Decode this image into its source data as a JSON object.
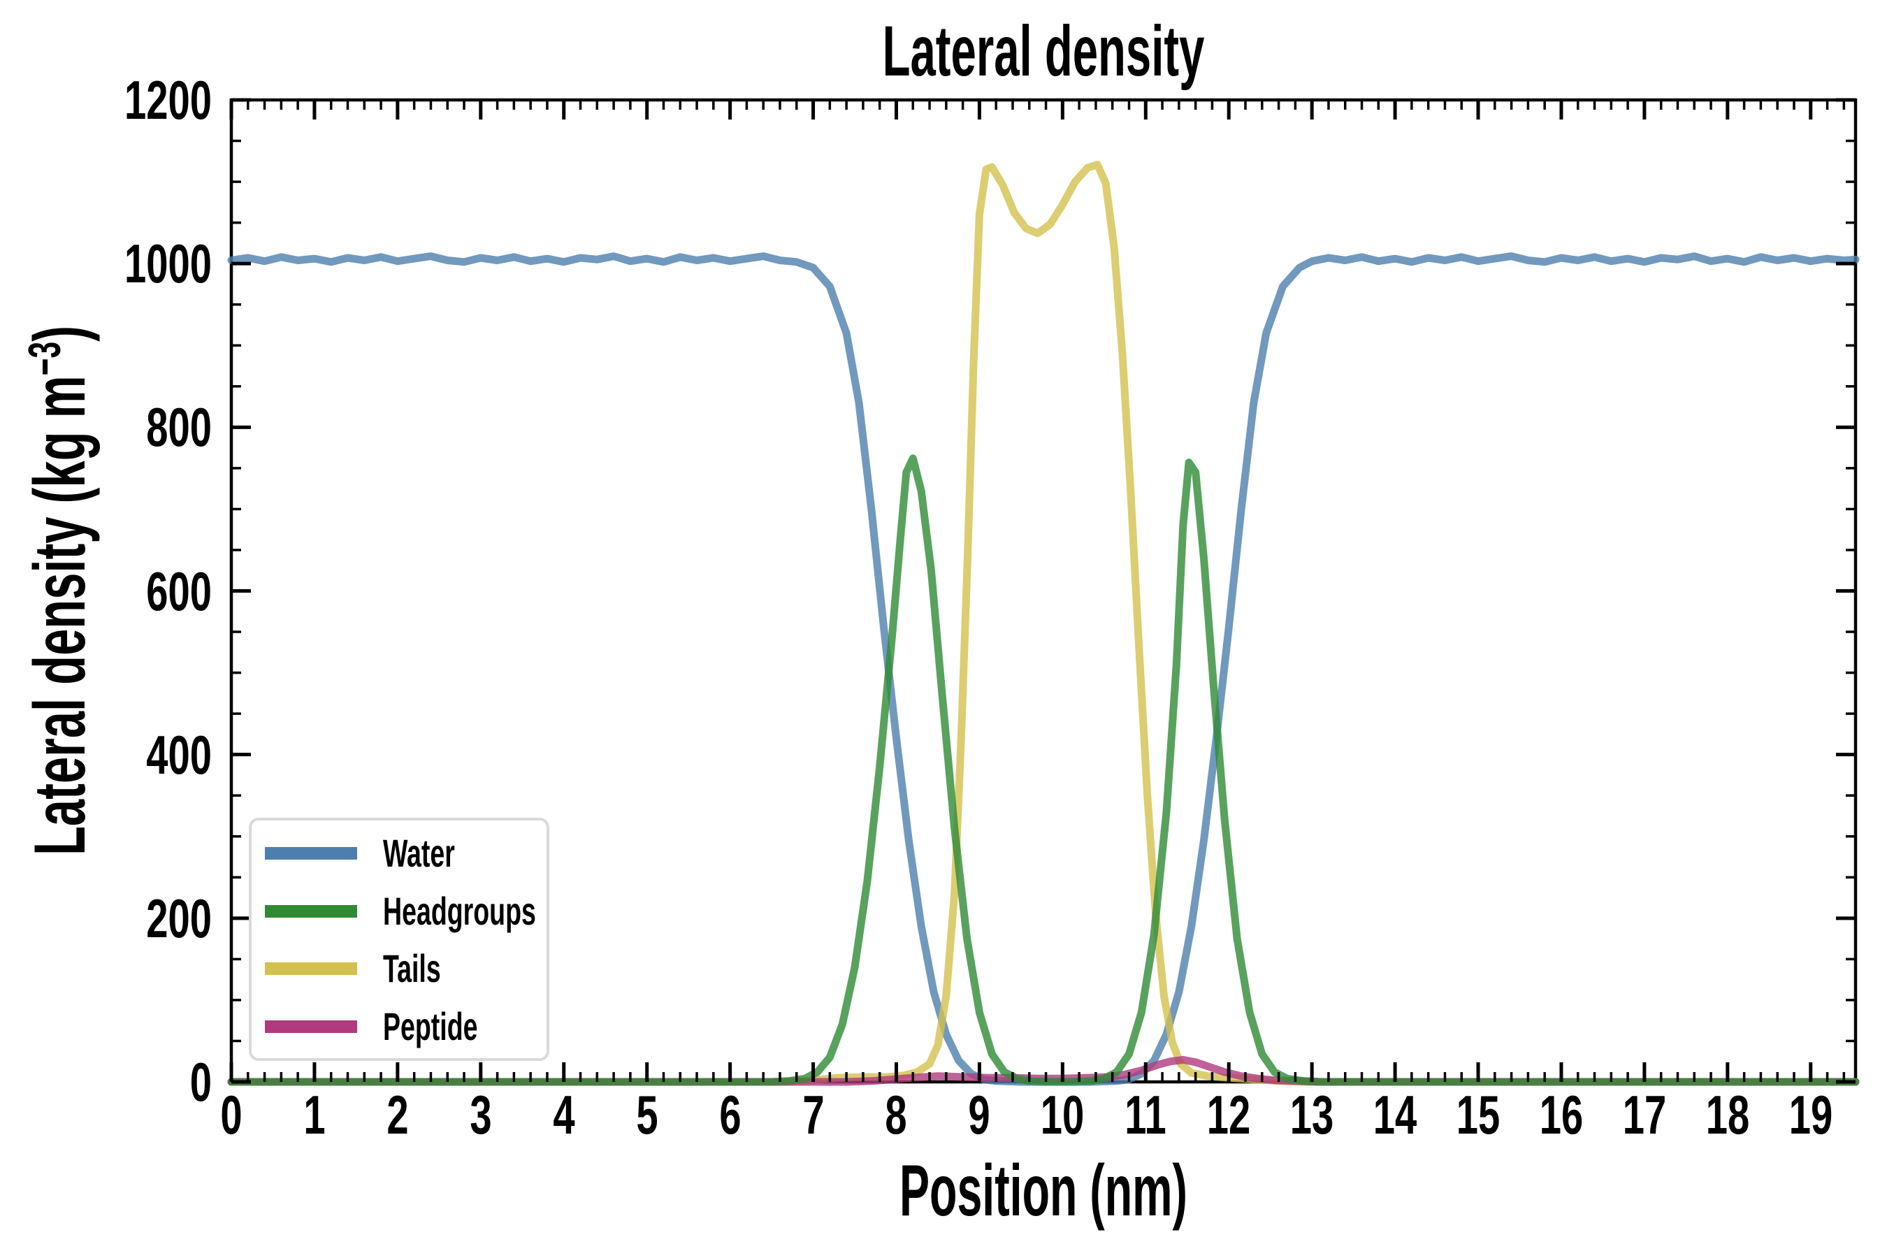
{
  "chart_data": {
    "type": "line",
    "title": "Lateral density",
    "xlabel": "Position (nm)",
    "ylabel_parts": [
      "Lateral density (kg m",
      "−3",
      ")"
    ],
    "xlim": [
      0,
      19.54
    ],
    "ylim": [
      0,
      1200
    ],
    "x_major_step": 1,
    "x_minor_step": 0.2,
    "y_major_step": 200,
    "y_minor_step": 50,
    "x_tick_labels": [
      "0",
      "1",
      "2",
      "3",
      "4",
      "5",
      "6",
      "7",
      "8",
      "9",
      "10",
      "11",
      "12",
      "13",
      "14",
      "15",
      "16",
      "17",
      "18",
      "19"
    ],
    "y_tick_labels": [
      "0",
      "200",
      "400",
      "600",
      "800",
      "1000",
      "1200"
    ],
    "grid": false,
    "legend_position": "lower left",
    "line_width": 11,
    "line_opacity": 0.8,
    "axis_color": "#000000",
    "legend_border_color": "#d9d9d9",
    "background": "#ffffff",
    "draw_order": [
      "Water",
      "Tails",
      "Peptide",
      "Headgroups"
    ],
    "series": [
      {
        "name": "Water",
        "color": "#4d7fae",
        "points": [
          [
            0,
            1004
          ],
          [
            0.2,
            1007
          ],
          [
            0.4,
            1003
          ],
          [
            0.6,
            1008
          ],
          [
            0.8,
            1004
          ],
          [
            1,
            1006
          ],
          [
            1.2,
            1002
          ],
          [
            1.4,
            1007
          ],
          [
            1.6,
            1004
          ],
          [
            1.8,
            1008
          ],
          [
            2,
            1003
          ],
          [
            2.2,
            1006
          ],
          [
            2.4,
            1009
          ],
          [
            2.6,
            1004
          ],
          [
            2.8,
            1002
          ],
          [
            3,
            1007
          ],
          [
            3.2,
            1004
          ],
          [
            3.4,
            1008
          ],
          [
            3.6,
            1003
          ],
          [
            3.8,
            1006
          ],
          [
            4,
            1002
          ],
          [
            4.2,
            1007
          ],
          [
            4.4,
            1005
          ],
          [
            4.6,
            1009
          ],
          [
            4.8,
            1003
          ],
          [
            5,
            1006
          ],
          [
            5.2,
            1002
          ],
          [
            5.4,
            1008
          ],
          [
            5.6,
            1004
          ],
          [
            5.8,
            1007
          ],
          [
            6,
            1003
          ],
          [
            6.2,
            1006
          ],
          [
            6.4,
            1009
          ],
          [
            6.6,
            1004
          ],
          [
            6.8,
            1002
          ],
          [
            7,
            995
          ],
          [
            7.2,
            972
          ],
          [
            7.4,
            915
          ],
          [
            7.55,
            830
          ],
          [
            7.7,
            700
          ],
          [
            7.85,
            555
          ],
          [
            8,
            420
          ],
          [
            8.15,
            295
          ],
          [
            8.3,
            190
          ],
          [
            8.45,
            110
          ],
          [
            8.6,
            58
          ],
          [
            8.75,
            26
          ],
          [
            8.9,
            10
          ],
          [
            9.05,
            3
          ],
          [
            9.2,
            1
          ],
          [
            9.5,
            0
          ],
          [
            10,
            0
          ],
          [
            10.35,
            0
          ],
          [
            10.65,
            1
          ],
          [
            10.8,
            3
          ],
          [
            10.95,
            10
          ],
          [
            11.1,
            26
          ],
          [
            11.25,
            58
          ],
          [
            11.4,
            110
          ],
          [
            11.55,
            190
          ],
          [
            11.7,
            295
          ],
          [
            11.85,
            420
          ],
          [
            12,
            555
          ],
          [
            12.15,
            700
          ],
          [
            12.3,
            830
          ],
          [
            12.45,
            915
          ],
          [
            12.65,
            972
          ],
          [
            12.85,
            995
          ],
          [
            13,
            1003
          ],
          [
            13.2,
            1007
          ],
          [
            13.4,
            1004
          ],
          [
            13.6,
            1008
          ],
          [
            13.8,
            1003
          ],
          [
            14,
            1006
          ],
          [
            14.2,
            1002
          ],
          [
            14.4,
            1007
          ],
          [
            14.6,
            1004
          ],
          [
            14.8,
            1008
          ],
          [
            15,
            1003
          ],
          [
            15.2,
            1006
          ],
          [
            15.4,
            1009
          ],
          [
            15.6,
            1004
          ],
          [
            15.8,
            1002
          ],
          [
            16,
            1007
          ],
          [
            16.2,
            1004
          ],
          [
            16.4,
            1008
          ],
          [
            16.6,
            1003
          ],
          [
            16.8,
            1006
          ],
          [
            17,
            1002
          ],
          [
            17.2,
            1007
          ],
          [
            17.4,
            1005
          ],
          [
            17.6,
            1009
          ],
          [
            17.8,
            1003
          ],
          [
            18,
            1006
          ],
          [
            18.2,
            1002
          ],
          [
            18.4,
            1008
          ],
          [
            18.6,
            1004
          ],
          [
            18.8,
            1007
          ],
          [
            19,
            1003
          ],
          [
            19.2,
            1006
          ],
          [
            19.4,
            1004
          ],
          [
            19.54,
            1005
          ]
        ]
      },
      {
        "name": "Headgroups",
        "color": "#2e8b35",
        "points": [
          [
            0,
            0
          ],
          [
            1,
            0
          ],
          [
            2,
            0
          ],
          [
            3,
            0
          ],
          [
            4,
            0
          ],
          [
            5,
            0
          ],
          [
            5.8,
            0
          ],
          [
            6.2,
            0
          ],
          [
            6.5,
            0
          ],
          [
            6.7,
            1
          ],
          [
            6.9,
            4
          ],
          [
            7.05,
            12
          ],
          [
            7.2,
            30
          ],
          [
            7.35,
            70
          ],
          [
            7.5,
            140
          ],
          [
            7.65,
            245
          ],
          [
            7.8,
            385
          ],
          [
            7.95,
            545
          ],
          [
            8.05,
            665
          ],
          [
            8.12,
            745
          ],
          [
            8.2,
            762
          ],
          [
            8.3,
            722
          ],
          [
            8.42,
            625
          ],
          [
            8.55,
            475
          ],
          [
            8.7,
            310
          ],
          [
            8.85,
            175
          ],
          [
            9,
            85
          ],
          [
            9.15,
            34
          ],
          [
            9.3,
            12
          ],
          [
            9.45,
            4
          ],
          [
            9.6,
            1
          ],
          [
            9.8,
            0
          ],
          [
            10.1,
            0
          ],
          [
            10.35,
            1
          ],
          [
            10.5,
            4
          ],
          [
            10.65,
            12
          ],
          [
            10.8,
            34
          ],
          [
            10.95,
            85
          ],
          [
            11.1,
            180
          ],
          [
            11.25,
            330
          ],
          [
            11.37,
            510
          ],
          [
            11.45,
            680
          ],
          [
            11.52,
            757
          ],
          [
            11.6,
            745
          ],
          [
            11.7,
            640
          ],
          [
            11.82,
            480
          ],
          [
            11.95,
            320
          ],
          [
            12.1,
            175
          ],
          [
            12.25,
            85
          ],
          [
            12.4,
            34
          ],
          [
            12.55,
            12
          ],
          [
            12.7,
            4
          ],
          [
            12.9,
            1
          ],
          [
            13.1,
            0
          ],
          [
            14,
            0
          ],
          [
            15,
            0
          ],
          [
            16,
            0
          ],
          [
            17,
            0
          ],
          [
            18,
            0
          ],
          [
            19,
            0
          ],
          [
            19.54,
            0
          ]
        ]
      },
      {
        "name": "Tails",
        "color": "#d3c04e",
        "points": [
          [
            0,
            0
          ],
          [
            1,
            0
          ],
          [
            2,
            0
          ],
          [
            3,
            0
          ],
          [
            4,
            0
          ],
          [
            5,
            0
          ],
          [
            6,
            0
          ],
          [
            6.6,
            0
          ],
          [
            6.9,
            1
          ],
          [
            7.1,
            3
          ],
          [
            7.3,
            5
          ],
          [
            7.6,
            6
          ],
          [
            7.9,
            6
          ],
          [
            8.1,
            8
          ],
          [
            8.25,
            12
          ],
          [
            8.4,
            22
          ],
          [
            8.5,
            45
          ],
          [
            8.6,
            105
          ],
          [
            8.7,
            230
          ],
          [
            8.78,
            420
          ],
          [
            8.86,
            650
          ],
          [
            8.93,
            880
          ],
          [
            9,
            1060
          ],
          [
            9.08,
            1115
          ],
          [
            9.15,
            1118
          ],
          [
            9.28,
            1096
          ],
          [
            9.42,
            1062
          ],
          [
            9.56,
            1043
          ],
          [
            9.7,
            1037
          ],
          [
            9.85,
            1048
          ],
          [
            10,
            1072
          ],
          [
            10.15,
            1100
          ],
          [
            10.3,
            1117
          ],
          [
            10.42,
            1121
          ],
          [
            10.52,
            1098
          ],
          [
            10.62,
            1020
          ],
          [
            10.72,
            890
          ],
          [
            10.82,
            720
          ],
          [
            10.92,
            530
          ],
          [
            11.02,
            350
          ],
          [
            11.12,
            205
          ],
          [
            11.22,
            105
          ],
          [
            11.32,
            48
          ],
          [
            11.42,
            22
          ],
          [
            11.55,
            11
          ],
          [
            11.75,
            7
          ],
          [
            12,
            5
          ],
          [
            12.3,
            3
          ],
          [
            12.6,
            1
          ],
          [
            12.9,
            0
          ],
          [
            13.5,
            0
          ],
          [
            14.5,
            0
          ],
          [
            16,
            0
          ],
          [
            18,
            0
          ],
          [
            19.54,
            0
          ]
        ]
      },
      {
        "name": "Peptide",
        "color": "#b03a7d",
        "points": [
          [
            0,
            0
          ],
          [
            1.5,
            0
          ],
          [
            3,
            0
          ],
          [
            4.5,
            0
          ],
          [
            6,
            0
          ],
          [
            7,
            0
          ],
          [
            7.4,
            0
          ],
          [
            7.7,
            1
          ],
          [
            7.95,
            3
          ],
          [
            8.2,
            5
          ],
          [
            8.5,
            7
          ],
          [
            8.8,
            6
          ],
          [
            9.1,
            5
          ],
          [
            9.4,
            5
          ],
          [
            9.7,
            4
          ],
          [
            10,
            4
          ],
          [
            10.3,
            5
          ],
          [
            10.55,
            6
          ],
          [
            10.75,
            9
          ],
          [
            10.95,
            14
          ],
          [
            11.15,
            21
          ],
          [
            11.3,
            25
          ],
          [
            11.45,
            27
          ],
          [
            11.6,
            24
          ],
          [
            11.75,
            19
          ],
          [
            11.95,
            12
          ],
          [
            12.15,
            7
          ],
          [
            12.35,
            4
          ],
          [
            12.55,
            2
          ],
          [
            12.8,
            1
          ],
          [
            13.1,
            0
          ],
          [
            14,
            0
          ],
          [
            16,
            0
          ],
          [
            18,
            0
          ],
          [
            19.54,
            0
          ]
        ]
      }
    ]
  }
}
